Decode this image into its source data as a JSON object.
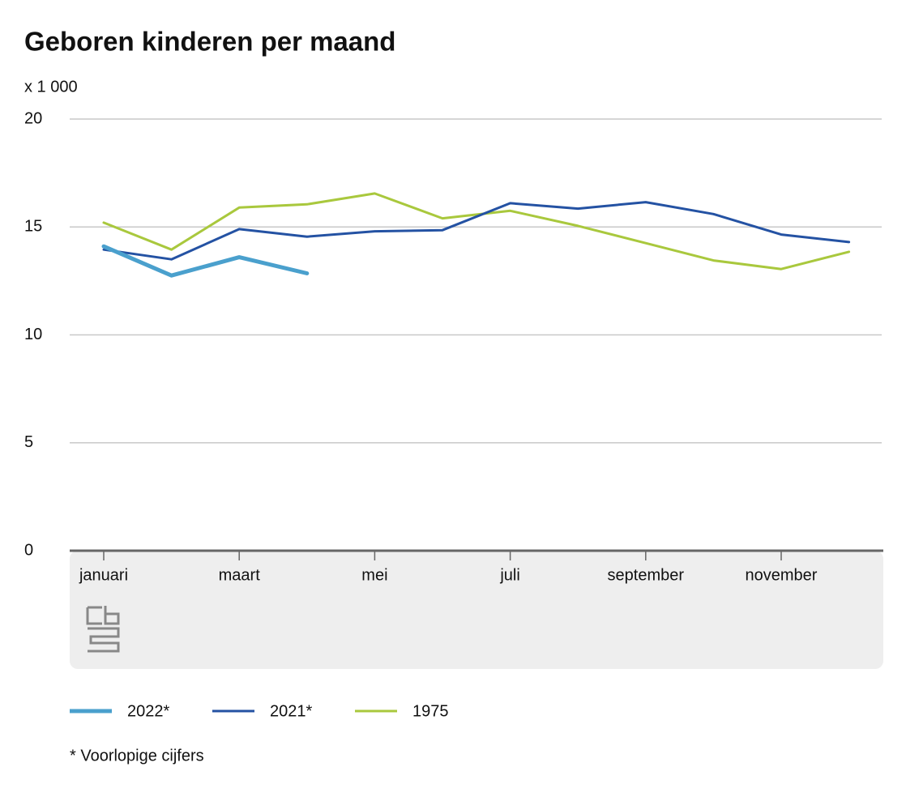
{
  "chart_data": {
    "type": "line",
    "title": "Geboren kinderen per maand",
    "y_unit": "x 1 000",
    "footnote": "* Voorlopige cijfers",
    "categories": [
      "januari",
      null,
      "maart",
      null,
      "mei",
      null,
      "juli",
      null,
      "september",
      null,
      "november",
      null
    ],
    "series": [
      {
        "name": "2022*",
        "color": "#4aa0cd",
        "values": [
          14.1,
          12.75,
          13.6,
          12.85,
          null,
          null,
          null,
          null,
          null,
          null,
          null,
          null
        ]
      },
      {
        "name": "2021*",
        "color": "#2452a3",
        "values": [
          13.95,
          13.5,
          14.9,
          14.55,
          14.8,
          14.85,
          16.1,
          15.85,
          16.15,
          15.6,
          14.65,
          14.3
        ]
      },
      {
        "name": "1975",
        "color": "#a9c83d",
        "values": [
          15.2,
          13.95,
          15.9,
          16.05,
          16.55,
          15.4,
          15.75,
          15.05,
          14.25,
          13.45,
          13.05,
          13.85
        ]
      }
    ],
    "ylim": [
      0,
      20
    ],
    "yticks": [
      0,
      5,
      10,
      15,
      20
    ],
    "grid": true
  }
}
